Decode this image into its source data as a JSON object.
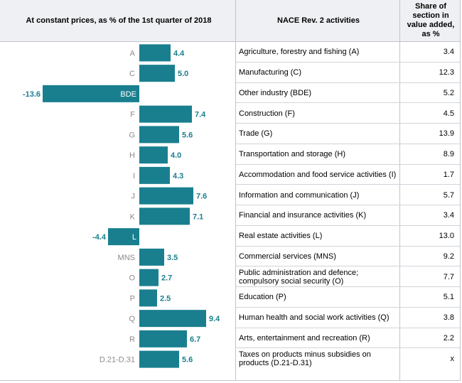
{
  "headers": {
    "chart": "At constant prices, as % of the 1st quarter of 2018",
    "activity": "NACE Rev. 2 activities",
    "share": "Share of section in value added, as %"
  },
  "colors": {
    "bar": "#197f8f",
    "value_label": "#197f8f",
    "code_label": "#8a8a8a",
    "code_label_inverse": "#ffffff",
    "header_bg": "#eef0f3"
  },
  "rows": [
    {
      "code": "A",
      "activity": "Agriculture, forestry and fishing (A)",
      "share": "3.4"
    },
    {
      "code": "C",
      "activity": "Manufacturing (C)",
      "share": "12.3"
    },
    {
      "code": "BDE",
      "activity": "Other industry (BDE)",
      "share": "5.2"
    },
    {
      "code": "F",
      "activity": "Construction (F)",
      "share": "4.5"
    },
    {
      "code": "G",
      "activity": "Trade (G)",
      "share": "13.9"
    },
    {
      "code": "H",
      "activity": "Transportation and storage (H)",
      "share": "8.9"
    },
    {
      "code": "I",
      "activity": "Accommodation and food service activities (I)",
      "share": "1.7"
    },
    {
      "code": "J",
      "activity": "Information and communication (J)",
      "share": "5.7"
    },
    {
      "code": "K",
      "activity": "Financial and insurance activities (K)",
      "share": "3.4"
    },
    {
      "code": "L",
      "activity": "Real estate activities (L)",
      "share": "13.0"
    },
    {
      "code": "MNS",
      "activity": "Commercial services (MNS)",
      "share": "9.2"
    },
    {
      "code": "O",
      "activity": "Public administration and defence; compulsory social security (O)",
      "share": "7.7"
    },
    {
      "code": "P",
      "activity": "Education (P)",
      "share": "5.1"
    },
    {
      "code": "Q",
      "activity": "Human health and social work activities (Q)",
      "share": "3.8"
    },
    {
      "code": "R",
      "activity": "Arts, entertainment and recreation (R)",
      "share": "2.2"
    },
    {
      "code": "D.21-D.31",
      "activity": "Taxes on products minus subsidies on products (D.21-D.31)",
      "share": "x"
    }
  ],
  "chart_data": {
    "type": "bar",
    "orientation": "horizontal",
    "title": "At constant prices, as % of the 1st quarter of 2018",
    "categories": [
      "A",
      "C",
      "BDE",
      "F",
      "G",
      "H",
      "I",
      "J",
      "K",
      "L",
      "MNS",
      "O",
      "P",
      "Q",
      "R",
      "D.21-D.31"
    ],
    "values": [
      4.4,
      5.0,
      -13.6,
      7.4,
      5.6,
      4.0,
      4.3,
      7.6,
      7.1,
      -4.4,
      3.5,
      2.7,
      2.5,
      9.4,
      6.7,
      5.6
    ],
    "value_labels": [
      "4.4",
      "5.0",
      "-13.6",
      "7.4",
      "5.6",
      "4.0",
      "4.3",
      "7.6",
      "7.1",
      "-4.4",
      "3.5",
      "2.7",
      "2.5",
      "9.4",
      "6.7",
      "5.6"
    ],
    "xlim": [
      -15,
      10
    ],
    "grid": false,
    "legend": "none"
  }
}
